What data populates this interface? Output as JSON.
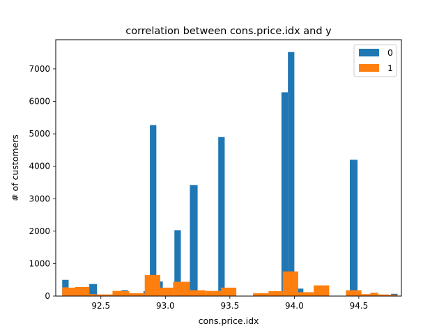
{
  "chart_data": {
    "type": "bar",
    "title": "correlation between cons.price.idx and y",
    "xlabel": "cons.price.idx",
    "ylabel": "# of customers",
    "xlim": [
      92.15,
      94.83
    ],
    "ylim": [
      0,
      7900
    ],
    "xticks": [
      92.5,
      93.0,
      93.5,
      94.0,
      94.5
    ],
    "xtick_labels": [
      "92.5",
      "93.0",
      "93.5",
      "94.0",
      "94.5"
    ],
    "yticks": [
      0,
      1000,
      2000,
      3000,
      4000,
      5000,
      6000,
      7000
    ],
    "ytick_labels": [
      "0",
      "1000",
      "2000",
      "3000",
      "4000",
      "5000",
      "6000",
      "7000"
    ],
    "grid": false,
    "legend_position": "top-right",
    "series": [
      {
        "name": "0",
        "color": "#1f77b4",
        "bins": [
          {
            "x0": 92.2,
            "x1": 92.25,
            "y": 500
          },
          {
            "x0": 92.25,
            "x1": 92.3,
            "y": 200
          },
          {
            "x0": 92.3,
            "x1": 92.36,
            "y": 260
          },
          {
            "x0": 92.41,
            "x1": 92.47,
            "y": 370
          },
          {
            "x0": 92.66,
            "x1": 92.71,
            "y": 180
          },
          {
            "x0": 92.83,
            "x1": 92.88,
            "y": 150
          },
          {
            "x0": 92.88,
            "x1": 92.93,
            "y": 5270
          },
          {
            "x0": 92.93,
            "x1": 92.98,
            "y": 450
          },
          {
            "x0": 93.07,
            "x1": 93.12,
            "y": 2030
          },
          {
            "x0": 93.19,
            "x1": 93.25,
            "y": 3420
          },
          {
            "x0": 93.41,
            "x1": 93.46,
            "y": 4900
          },
          {
            "x0": 93.9,
            "x1": 93.95,
            "y": 6280
          },
          {
            "x0": 93.95,
            "x1": 94.0,
            "y": 7520
          },
          {
            "x0": 94.02,
            "x1": 94.07,
            "y": 230
          },
          {
            "x0": 94.43,
            "x1": 94.49,
            "y": 4200
          },
          {
            "x0": 94.59,
            "x1": 94.64,
            "y": 100
          },
          {
            "x0": 94.75,
            "x1": 94.8,
            "y": 70
          }
        ]
      },
      {
        "name": "1",
        "color": "#ff7f0e",
        "bins": [
          {
            "x0": 92.2,
            "x1": 92.25,
            "y": 270
          },
          {
            "x0": 92.25,
            "x1": 92.3,
            "y": 260
          },
          {
            "x0": 92.3,
            "x1": 92.41,
            "y": 280
          },
          {
            "x0": 92.41,
            "x1": 92.46,
            "y": 60
          },
          {
            "x0": 92.46,
            "x1": 92.59,
            "y": 50
          },
          {
            "x0": 92.59,
            "x1": 92.66,
            "y": 160
          },
          {
            "x0": 92.66,
            "x1": 92.72,
            "y": 150
          },
          {
            "x0": 92.72,
            "x1": 92.84,
            "y": 90
          },
          {
            "x0": 92.84,
            "x1": 92.96,
            "y": 650
          },
          {
            "x0": 92.96,
            "x1": 93.06,
            "y": 260
          },
          {
            "x0": 93.06,
            "x1": 93.19,
            "y": 440
          },
          {
            "x0": 93.19,
            "x1": 93.31,
            "y": 180
          },
          {
            "x0": 93.31,
            "x1": 93.43,
            "y": 160
          },
          {
            "x0": 93.43,
            "x1": 93.55,
            "y": 260
          },
          {
            "x0": 93.68,
            "x1": 93.8,
            "y": 90
          },
          {
            "x0": 93.8,
            "x1": 93.91,
            "y": 150
          },
          {
            "x0": 93.91,
            "x1": 94.03,
            "y": 760
          },
          {
            "x0": 94.03,
            "x1": 94.15,
            "y": 120
          },
          {
            "x0": 94.15,
            "x1": 94.27,
            "y": 330
          },
          {
            "x0": 94.4,
            "x1": 94.52,
            "y": 180
          },
          {
            "x0": 94.52,
            "x1": 94.59,
            "y": 60
          },
          {
            "x0": 94.59,
            "x1": 94.65,
            "y": 100
          },
          {
            "x0": 94.65,
            "x1": 94.73,
            "y": 50
          },
          {
            "x0": 94.73,
            "x1": 94.8,
            "y": 40
          }
        ]
      }
    ]
  }
}
